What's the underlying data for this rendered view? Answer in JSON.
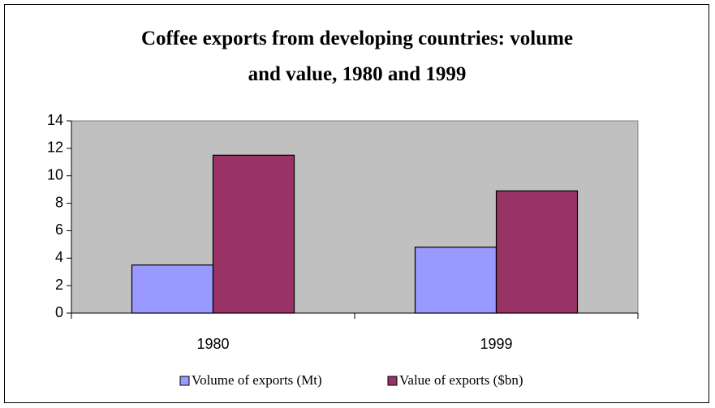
{
  "chart_data": {
    "type": "bar",
    "title": "Coffee exports from developing countries: volume and value, 1980 and 1999",
    "categories": [
      "1980",
      "1999"
    ],
    "series": [
      {
        "name": "Volume of exports (Mt)",
        "color": "#9999ff",
        "values": [
          3.5,
          4.8
        ]
      },
      {
        "name": "Value of exports ($bn)",
        "color": "#993366",
        "values": [
          11.5,
          8.9
        ]
      }
    ],
    "ylim": [
      0,
      14
    ],
    "yticks": [
      0,
      2,
      4,
      6,
      8,
      10,
      12,
      14
    ],
    "plot_background": "#c0c0c0",
    "legend": "bottom"
  }
}
